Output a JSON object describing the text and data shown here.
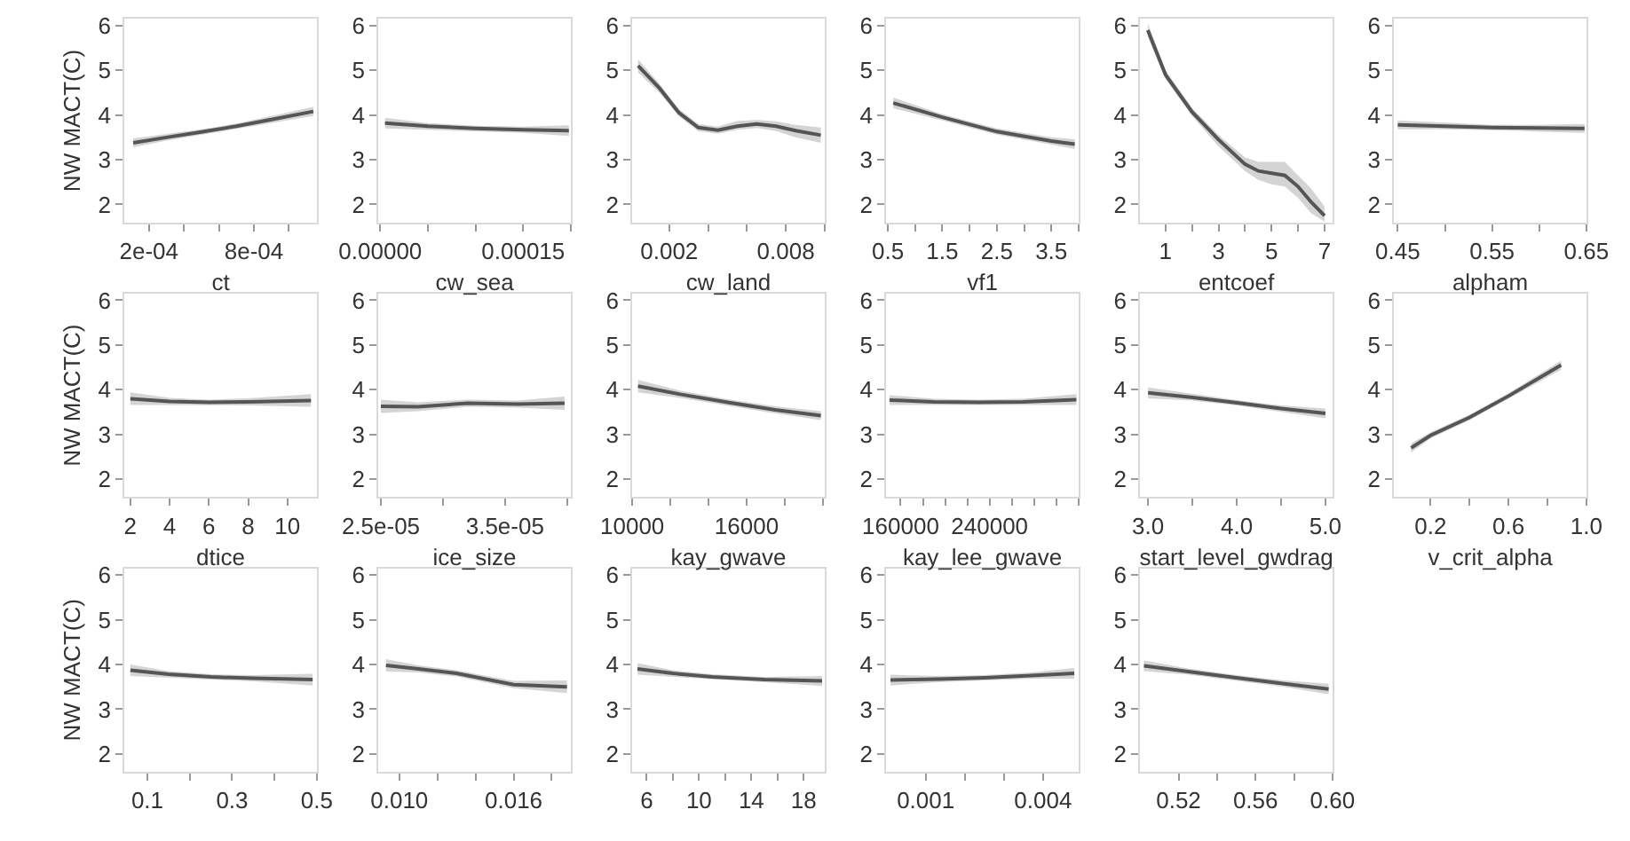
{
  "chart_data": [
    {
      "type": "line",
      "xlabel": "ct",
      "ylabel": "NW MACT(C)",
      "xlim": [
        6e-05,
        0.00116
      ],
      "xticks": [
        {
          "value": 0.0002,
          "label": "2e-04"
        },
        {
          "value": 0.0004,
          "label": null
        },
        {
          "value": 0.0006,
          "label": null
        },
        {
          "value": 0.0008,
          "label": "8e-04"
        },
        {
          "value": 0.001,
          "label": null
        }
      ],
      "ylim": [
        1.6,
        6.15
      ],
      "yticks": [
        2,
        3,
        4,
        5,
        6
      ],
      "series": [
        {
          "color": "#555555",
          "x": [
            0.00011,
            0.0003,
            0.0005,
            0.0007,
            0.0009,
            0.00114
          ],
          "values": [
            3.38,
            3.5,
            3.62,
            3.75,
            3.9,
            4.08
          ],
          "lower": [
            3.28,
            3.43,
            3.56,
            3.69,
            3.83,
            3.98
          ],
          "upper": [
            3.48,
            3.57,
            3.68,
            3.81,
            3.97,
            4.18
          ]
        }
      ]
    },
    {
      "type": "line",
      "xlabel": "cw_sea",
      "xlim": [
        -2e-06,
        0.0002
      ],
      "xticks": [
        {
          "value": 0,
          "label": "0.00000"
        },
        {
          "value": 5e-05,
          "label": null
        },
        {
          "value": 0.0001,
          "label": null
        },
        {
          "value": 0.00015,
          "label": "0.00015"
        },
        {
          "value": 0.0002,
          "label": null
        }
      ],
      "ylim": [
        1.6,
        6.15
      ],
      "yticks": [
        2,
        3,
        4,
        5,
        6
      ],
      "series": [
        {
          "color": "#555555",
          "x": [
            5e-06,
            5e-05,
            0.0001,
            0.00015,
            0.000198
          ],
          "values": [
            3.82,
            3.75,
            3.7,
            3.67,
            3.65
          ],
          "lower": [
            3.7,
            3.68,
            3.64,
            3.6,
            3.53
          ],
          "upper": [
            3.94,
            3.82,
            3.76,
            3.74,
            3.77
          ]
        }
      ]
    },
    {
      "type": "line",
      "xlabel": "cw_land",
      "xlim": [
        0.0001,
        0.01
      ],
      "xticks": [
        {
          "value": 0.002,
          "label": "0.002"
        },
        {
          "value": 0.004,
          "label": null
        },
        {
          "value": 0.006,
          "label": null
        },
        {
          "value": 0.008,
          "label": "0.008"
        },
        {
          "value": 0.01,
          "label": null
        }
      ],
      "ylim": [
        1.6,
        6.15
      ],
      "yticks": [
        2,
        3,
        4,
        5,
        6
      ],
      "series": [
        {
          "color": "#555555",
          "x": [
            0.0004,
            0.0015,
            0.0025,
            0.0035,
            0.0045,
            0.0055,
            0.0065,
            0.0075,
            0.0085,
            0.0098
          ],
          "values": [
            5.1,
            4.6,
            4.05,
            3.72,
            3.66,
            3.75,
            3.8,
            3.75,
            3.65,
            3.55
          ],
          "lower": [
            4.95,
            4.5,
            3.97,
            3.64,
            3.58,
            3.67,
            3.71,
            3.64,
            3.5,
            3.38
          ],
          "upper": [
            5.25,
            4.7,
            4.13,
            3.8,
            3.74,
            3.87,
            3.89,
            3.86,
            3.78,
            3.72
          ]
        }
      ]
    },
    {
      "type": "line",
      "xlabel": "vf1",
      "xlim": [
        0.47,
        4.0
      ],
      "xticks": [
        {
          "value": 0.5,
          "label": "0.5"
        },
        {
          "value": 1,
          "label": null
        },
        {
          "value": 1.5,
          "label": "1.5"
        },
        {
          "value": 2,
          "label": null
        },
        {
          "value": 2.5,
          "label": "2.5"
        },
        {
          "value": 3,
          "label": null
        },
        {
          "value": 3.5,
          "label": "3.5"
        },
        {
          "value": 4,
          "label": null
        }
      ],
      "ylim": [
        1.6,
        6.15
      ],
      "yticks": [
        2,
        3,
        4,
        5,
        6
      ],
      "series": [
        {
          "color": "#555555",
          "x": [
            0.6,
            1.5,
            2.5,
            3.5,
            3.93
          ],
          "values": [
            4.27,
            3.95,
            3.63,
            3.42,
            3.35
          ],
          "lower": [
            4.15,
            3.88,
            3.56,
            3.34,
            3.24
          ],
          "upper": [
            4.39,
            4.02,
            3.7,
            3.5,
            3.46
          ]
        }
      ]
    },
    {
      "type": "line",
      "xlabel": "entcoef",
      "xlim": [
        0.04,
        7.3
      ],
      "xticks": [
        {
          "value": 1,
          "label": "1"
        },
        {
          "value": 2,
          "label": null
        },
        {
          "value": 3,
          "label": "3"
        },
        {
          "value": 4,
          "label": null
        },
        {
          "value": 5,
          "label": "5"
        },
        {
          "value": 6,
          "label": null
        },
        {
          "value": 7,
          "label": "7"
        }
      ],
      "ylim": [
        1.6,
        6.15
      ],
      "yticks": [
        2,
        3,
        4,
        5,
        6
      ],
      "series": [
        {
          "color": "#555555",
          "x": [
            0.33,
            1,
            2,
            3,
            4,
            4.5,
            5,
            5.5,
            6,
            6.5,
            7
          ],
          "values": [
            5.9,
            4.9,
            4.07,
            3.45,
            2.9,
            2.75,
            2.7,
            2.65,
            2.4,
            2.05,
            1.75
          ],
          "lower": [
            5.75,
            4.8,
            3.98,
            3.3,
            2.75,
            2.55,
            2.45,
            2.4,
            2.15,
            1.8,
            1.62
          ],
          "upper": [
            6.05,
            5.0,
            4.16,
            3.55,
            3.05,
            2.95,
            2.95,
            2.95,
            2.65,
            2.35,
            1.95
          ]
        }
      ]
    },
    {
      "type": "line",
      "xlabel": "alpham",
      "xlim": [
        0.446,
        0.65
      ],
      "xticks": [
        {
          "value": 0.45,
          "label": "0.45"
        },
        {
          "value": 0.5,
          "label": null
        },
        {
          "value": 0.55,
          "label": "0.55"
        },
        {
          "value": 0.6,
          "label": null
        },
        {
          "value": 0.65,
          "label": "0.65"
        }
      ],
      "ylim": [
        1.6,
        6.15
      ],
      "yticks": [
        2,
        3,
        4,
        5,
        6
      ],
      "series": [
        {
          "color": "#555555",
          "x": [
            0.45,
            0.5,
            0.55,
            0.6,
            0.648
          ],
          "values": [
            3.78,
            3.75,
            3.72,
            3.71,
            3.7
          ],
          "lower": [
            3.68,
            3.68,
            3.66,
            3.64,
            3.6
          ],
          "upper": [
            3.88,
            3.82,
            3.78,
            3.78,
            3.8
          ]
        }
      ]
    },
    {
      "type": "line",
      "xlabel": "dtice",
      "ylabel": "NW MACT(C)",
      "xlim": [
        1.7,
        11.5
      ],
      "xticks": [
        2,
        4,
        6,
        8,
        10
      ],
      "ylim": [
        1.6,
        6.15
      ],
      "yticks": [
        2,
        3,
        4,
        5,
        6
      ],
      "series": [
        {
          "color": "#555555",
          "x": [
            2,
            4,
            6,
            8,
            11.2
          ],
          "values": [
            3.8,
            3.74,
            3.72,
            3.73,
            3.76
          ],
          "lower": [
            3.66,
            3.66,
            3.66,
            3.65,
            3.62
          ],
          "upper": [
            3.94,
            3.82,
            3.78,
            3.81,
            3.9
          ]
        }
      ]
    },
    {
      "type": "line",
      "xlabel": "ice_size",
      "xlim": [
        2.48e-05,
        4.03e-05
      ],
      "xticks": [
        {
          "value": 2.5e-05,
          "label": "2.5e-05"
        },
        {
          "value": 3e-05,
          "label": null
        },
        {
          "value": 3.5e-05,
          "label": "3.5e-05"
        },
        {
          "value": 4e-05,
          "label": null
        }
      ],
      "ylim": [
        1.6,
        6.15
      ],
      "yticks": [
        2,
        3,
        4,
        5,
        6
      ],
      "series": [
        {
          "color": "#555555",
          "x": [
            2.5e-05,
            2.8e-05,
            3.2e-05,
            3.6e-05,
            3.98e-05
          ],
          "values": [
            3.63,
            3.62,
            3.7,
            3.68,
            3.7
          ],
          "lower": [
            3.48,
            3.52,
            3.62,
            3.6,
            3.55
          ],
          "upper": [
            3.78,
            3.72,
            3.78,
            3.76,
            3.85
          ]
        }
      ]
    },
    {
      "type": "line",
      "xlabel": "kay_gwave",
      "xlim": [
        10000,
        20100
      ],
      "xticks": [
        {
          "value": 10000,
          "label": "10000"
        },
        {
          "value": 12000,
          "label": null
        },
        {
          "value": 14000,
          "label": null
        },
        {
          "value": 16000,
          "label": "16000"
        },
        {
          "value": 18000,
          "label": null
        },
        {
          "value": 20000,
          "label": null
        }
      ],
      "ylim": [
        1.6,
        6.15
      ],
      "yticks": [
        2,
        3,
        4,
        5,
        6
      ],
      "series": [
        {
          "color": "#555555",
          "x": [
            10300,
            12500,
            15000,
            17500,
            19900
          ],
          "values": [
            4.08,
            3.9,
            3.72,
            3.55,
            3.42
          ],
          "lower": [
            3.94,
            3.82,
            3.65,
            3.47,
            3.32
          ],
          "upper": [
            4.22,
            3.98,
            3.79,
            3.63,
            3.52
          ]
        }
      ]
    },
    {
      "type": "line",
      "xlabel": "kay_lee_gwave",
      "xlim": [
        147000,
        320000
      ],
      "xticks": [
        {
          "value": 160000,
          "label": "160000"
        },
        {
          "value": 180000,
          "label": null
        },
        {
          "value": 200000,
          "label": null
        },
        {
          "value": 220000,
          "label": null
        },
        {
          "value": 240000,
          "label": "240000"
        },
        {
          "value": 260000,
          "label": null
        },
        {
          "value": 280000,
          "label": null
        },
        {
          "value": 300000,
          "label": null
        },
        {
          "value": 320000,
          "label": null
        }
      ],
      "ylim": [
        1.6,
        6.15
      ],
      "yticks": [
        2,
        3,
        4,
        5,
        6
      ],
      "series": [
        {
          "color": "#555555",
          "x": [
            150000,
            190000,
            230000,
            270000,
            318000
          ],
          "values": [
            3.77,
            3.73,
            3.72,
            3.73,
            3.78
          ],
          "lower": [
            3.66,
            3.66,
            3.66,
            3.66,
            3.66
          ],
          "upper": [
            3.88,
            3.8,
            3.78,
            3.8,
            3.9
          ]
        }
      ]
    },
    {
      "type": "line",
      "xlabel": "start_level_gwdrag",
      "xlim": [
        2.91,
        5.08
      ],
      "xticks": [
        {
          "value": 3,
          "label": "3.0"
        },
        {
          "value": 3.5,
          "label": null
        },
        {
          "value": 4,
          "label": "4.0"
        },
        {
          "value": 4.5,
          "label": null
        },
        {
          "value": 5,
          "label": "5.0"
        }
      ],
      "ylim": [
        1.6,
        6.15
      ],
      "yticks": [
        2,
        3,
        4,
        5,
        6
      ],
      "series": [
        {
          "color": "#555555",
          "x": [
            3,
            3.5,
            4,
            4.5,
            5
          ],
          "values": [
            3.93,
            3.83,
            3.71,
            3.58,
            3.47
          ],
          "lower": [
            3.81,
            3.76,
            3.65,
            3.51,
            3.36
          ],
          "upper": [
            4.05,
            3.9,
            3.77,
            3.65,
            3.58
          ]
        }
      ]
    },
    {
      "type": "line",
      "xlabel": "v_crit_alpha",
      "xlim": [
        0.012,
        1.0
      ],
      "xticks": [
        {
          "value": 0.2,
          "label": "0.2"
        },
        {
          "value": 0.4,
          "label": null
        },
        {
          "value": 0.6,
          "label": "0.6"
        },
        {
          "value": 0.8,
          "label": null
        },
        {
          "value": 1.0,
          "label": "1.0"
        }
      ],
      "ylim": [
        1.6,
        6.15
      ],
      "yticks": [
        2,
        3,
        4,
        5,
        6
      ],
      "series": [
        {
          "color": "#555555",
          "x": [
            0.1,
            0.2,
            0.4,
            0.6,
            0.87
          ],
          "values": [
            2.7,
            2.98,
            3.38,
            3.86,
            4.55
          ],
          "lower": [
            2.6,
            2.91,
            3.32,
            3.8,
            4.45
          ],
          "upper": [
            2.8,
            3.05,
            3.44,
            3.92,
            4.65
          ]
        }
      ]
    },
    {
      "type": "line",
      "ylabel": "NW MACT(C)",
      "xlim": [
        0.046,
        0.5
      ],
      "xticks": [
        {
          "value": 0.1,
          "label": "0.1"
        },
        {
          "value": 0.2,
          "label": null
        },
        {
          "value": 0.3,
          "label": "0.3"
        },
        {
          "value": 0.4,
          "label": null
        },
        {
          "value": 0.5,
          "label": "0.5"
        }
      ],
      "ylim": [
        1.6,
        6.15
      ],
      "yticks": [
        2,
        3,
        4,
        5,
        6
      ],
      "series": [
        {
          "color": "#555555",
          "x": [
            0.06,
            0.15,
            0.25,
            0.35,
            0.49
          ],
          "values": [
            3.87,
            3.78,
            3.72,
            3.69,
            3.66
          ],
          "lower": [
            3.74,
            3.71,
            3.66,
            3.62,
            3.53
          ],
          "upper": [
            4.0,
            3.85,
            3.78,
            3.76,
            3.79
          ]
        }
      ]
    },
    {
      "type": "line",
      "xlim": [
        0.0089,
        0.019
      ],
      "xticks": [
        {
          "value": 0.01,
          "label": "0.010"
        },
        {
          "value": 0.012,
          "label": null
        },
        {
          "value": 0.014,
          "label": null
        },
        {
          "value": 0.016,
          "label": "0.016"
        },
        {
          "value": 0.018,
          "label": null
        }
      ],
      "ylim": [
        1.6,
        6.15
      ],
      "yticks": [
        2,
        3,
        4,
        5,
        6
      ],
      "series": [
        {
          "color": "#555555",
          "x": [
            0.0093,
            0.011,
            0.013,
            0.016,
            0.0188
          ],
          "values": [
            3.98,
            3.9,
            3.8,
            3.55,
            3.5
          ],
          "lower": [
            3.84,
            3.82,
            3.73,
            3.47,
            3.36
          ],
          "upper": [
            4.12,
            3.98,
            3.87,
            3.63,
            3.64
          ]
        }
      ]
    },
    {
      "type": "line",
      "xlim": [
        4.9,
        19.6
      ],
      "xticks": [
        6,
        {
          "value": 8,
          "label": null
        },
        10,
        {
          "value": 12,
          "label": null
        },
        14,
        {
          "value": 16,
          "label": null
        },
        18
      ],
      "ylim": [
        1.6,
        6.15
      ],
      "yticks": [
        2,
        3,
        4,
        5,
        6
      ],
      "series": [
        {
          "color": "#555555",
          "x": [
            5.3,
            8,
            11,
            15,
            19.4
          ],
          "values": [
            3.9,
            3.8,
            3.72,
            3.66,
            3.63
          ],
          "lower": [
            3.77,
            3.73,
            3.66,
            3.6,
            3.52
          ],
          "upper": [
            4.03,
            3.87,
            3.78,
            3.72,
            3.74
          ]
        }
      ]
    },
    {
      "type": "line",
      "xlim": [
        -1e-05,
        0.00491
      ],
      "xticks": [
        {
          "value": 0.001,
          "label": "0.001"
        },
        {
          "value": 0.002,
          "label": null
        },
        {
          "value": 0.003,
          "label": null
        },
        {
          "value": 0.004,
          "label": "0.004"
        }
      ],
      "ylim": [
        1.6,
        6.15
      ],
      "yticks": [
        2,
        3,
        4,
        5,
        6
      ],
      "series": [
        {
          "color": "#555555",
          "x": [
            0.0001,
            0.0013,
            0.0025,
            0.0037,
            0.0048
          ],
          "values": [
            3.65,
            3.67,
            3.7,
            3.75,
            3.8
          ],
          "lower": [
            3.53,
            3.6,
            3.64,
            3.68,
            3.68
          ],
          "upper": [
            3.77,
            3.74,
            3.76,
            3.82,
            3.92
          ]
        }
      ]
    },
    {
      "type": "line",
      "xlim": [
        0.5,
        0.6
      ],
      "xticks": [
        {
          "value": 0.52,
          "label": "0.52"
        },
        {
          "value": 0.54,
          "label": null
        },
        {
          "value": 0.56,
          "label": "0.56"
        },
        {
          "value": 0.58,
          "label": null
        },
        {
          "value": 0.6,
          "label": "0.60"
        }
      ],
      "ylim": [
        1.6,
        6.15
      ],
      "yticks": [
        2,
        3,
        4,
        5,
        6
      ],
      "series": [
        {
          "color": "#555555",
          "x": [
            0.502,
            0.525,
            0.55,
            0.575,
            0.598
          ],
          "values": [
            3.97,
            3.84,
            3.7,
            3.57,
            3.45
          ],
          "lower": [
            3.85,
            3.77,
            3.64,
            3.5,
            3.33
          ],
          "upper": [
            4.09,
            3.91,
            3.76,
            3.64,
            3.57
          ]
        }
      ]
    }
  ]
}
